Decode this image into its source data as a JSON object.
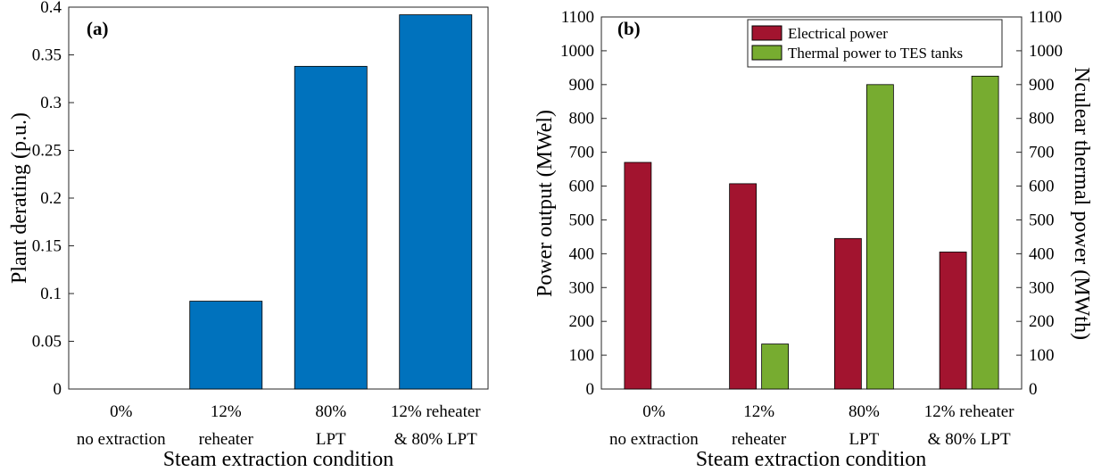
{
  "chart_data": [
    {
      "type": "bar",
      "panel_label": "(a)",
      "categories": [
        [
          "0%",
          "no extraction"
        ],
        [
          "12%",
          "reheater"
        ],
        [
          "80%",
          "LPT"
        ],
        [
          "12% reheater",
          "& 80% LPT"
        ]
      ],
      "values": [
        0,
        0.092,
        0.338,
        0.392
      ],
      "xlabel": "Steam extraction condition",
      "ylabel": "Plant derating (p.u.)",
      "ylim": [
        0,
        0.4
      ],
      "yticks": [
        "0",
        "0.05",
        "0.1",
        "0.15",
        "0.2",
        "0.25",
        "0.3",
        "0.35",
        "0.4"
      ],
      "color": "#0072BD",
      "grid": false
    },
    {
      "type": "bar",
      "panel_label": "(b)",
      "categories": [
        [
          "0%",
          "no extraction"
        ],
        [
          "12%",
          "reheater"
        ],
        [
          "80%",
          "LPT"
        ],
        [
          "12% reheater",
          "& 80% LPT"
        ]
      ],
      "series": [
        {
          "name": "Electrical power",
          "values": [
            670,
            607,
            445,
            405
          ],
          "color": "#A2142F",
          "axis": "left"
        },
        {
          "name": "Thermal power to TES tanks",
          "values": [
            0,
            133,
            900,
            925
          ],
          "color": "#77AC30",
          "axis": "right"
        }
      ],
      "xlabel": "Steam extraction condition",
      "ylabel": "Power output (MWel)",
      "ylabel_right": "Nculear thermal power (MWth)",
      "ylim": [
        0,
        1100
      ],
      "ylim_right": [
        0,
        1100
      ],
      "yticks": [
        "0",
        "100",
        "200",
        "300",
        "400",
        "500",
        "600",
        "700",
        "800",
        "900",
        "1000",
        "1100"
      ],
      "legend_position": "top-right",
      "grid": false
    }
  ]
}
